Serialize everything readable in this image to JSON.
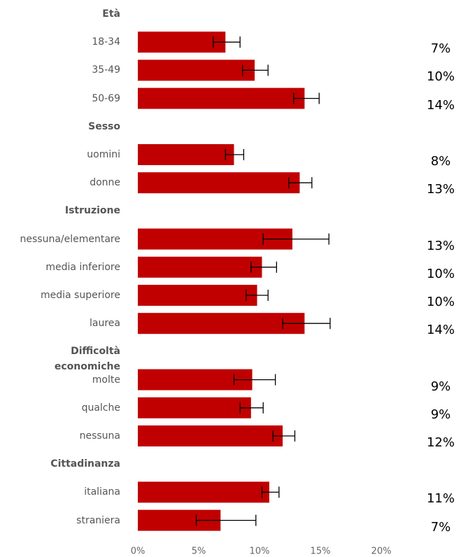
{
  "chart_data": {
    "type": "bar",
    "color": "#c00000",
    "xlim": [
      0,
      20
    ],
    "xticks": [
      {
        "value": 0,
        "label": "0%"
      },
      {
        "value": 5,
        "label": "5%"
      },
      {
        "value": 10,
        "label": "10%"
      },
      {
        "value": 15,
        "label": "15%"
      },
      {
        "value": 20,
        "label": "20%"
      }
    ],
    "groups": [
      {
        "name": "Età",
        "categories": [
          "18-34",
          "35-49",
          "50-69"
        ],
        "values": [
          7.2,
          9.6,
          13.7
        ],
        "lower": [
          6.2,
          8.6,
          12.8
        ],
        "upper": [
          8.4,
          10.7,
          14.9
        ],
        "value_labels": [
          "7%",
          "10%",
          "14%"
        ]
      },
      {
        "name": "Sesso",
        "categories": [
          "uomini",
          "donne"
        ],
        "values": [
          7.9,
          13.3
        ],
        "lower": [
          7.2,
          12.4
        ],
        "upper": [
          8.7,
          14.3
        ],
        "value_labels": [
          "8%",
          "13%"
        ]
      },
      {
        "name": "Istruzione",
        "categories": [
          "nessuna/elementare",
          "media inferiore",
          "media superiore",
          "laurea"
        ],
        "values": [
          12.7,
          10.2,
          9.8,
          13.7
        ],
        "lower": [
          10.3,
          9.3,
          8.9,
          11.9
        ],
        "upper": [
          15.7,
          11.4,
          10.7,
          15.8
        ],
        "value_labels": [
          "13%",
          "10%",
          "10%",
          "14%"
        ]
      },
      {
        "name": "Difficoltà economiche",
        "categories": [
          "molte",
          "qualche",
          "nessuna"
        ],
        "values": [
          9.4,
          9.3,
          11.9
        ],
        "lower": [
          7.9,
          8.4,
          11.1
        ],
        "upper": [
          11.3,
          10.3,
          12.9
        ],
        "value_labels": [
          "9%",
          "9%",
          "12%"
        ]
      },
      {
        "name": "Cittadinanza",
        "categories": [
          "italiana",
          "straniera"
        ],
        "values": [
          10.8,
          6.8
        ],
        "lower": [
          10.2,
          4.8
        ],
        "upper": [
          11.6,
          9.7
        ],
        "value_labels": [
          "11%",
          "7%"
        ]
      }
    ]
  }
}
